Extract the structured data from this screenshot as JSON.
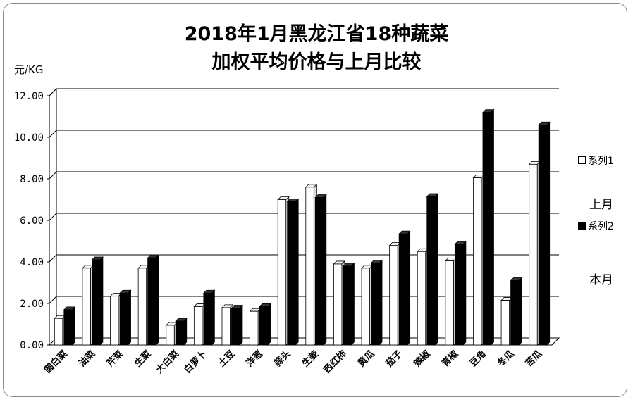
{
  "chart_data": {
    "type": "bar",
    "title_line1": "2018年1月黑龙江省18种蔬菜",
    "title_line2": "加权平均价格与上月比较",
    "ylabel": "元/KG",
    "ylim": [
      0,
      12
    ],
    "yticks": [
      "0.00",
      "2.00",
      "4.00",
      "6.00",
      "8.00",
      "10.00",
      "12.00"
    ],
    "grid": true,
    "legend_position": "right",
    "categories": [
      "圆白菜",
      "油菜",
      "芹菜",
      "生菜",
      "大白菜",
      "白萝卜",
      "土豆",
      "洋葱",
      "蒜头",
      "生姜",
      "西红柿",
      "黄瓜",
      "茄子",
      "辣椒",
      "青椒",
      "豆角",
      "冬瓜",
      "苦瓜"
    ],
    "series": [
      {
        "name": "系列1",
        "color": "#ffffff",
        "values": [
          1.28,
          3.7,
          2.35,
          3.7,
          0.95,
          1.85,
          1.8,
          1.62,
          7.0,
          7.6,
          3.9,
          3.7,
          4.8,
          4.5,
          4.05,
          8.05,
          2.15,
          8.7
        ]
      },
      {
        "name": "系列2",
        "color": "#000000",
        "values": [
          1.7,
          4.1,
          2.5,
          4.2,
          1.15,
          2.5,
          1.78,
          1.85,
          6.9,
          7.1,
          3.8,
          3.95,
          5.35,
          7.15,
          4.85,
          11.2,
          3.1,
          10.6
        ]
      }
    ],
    "annotations": [
      "上月",
      "本月"
    ]
  }
}
